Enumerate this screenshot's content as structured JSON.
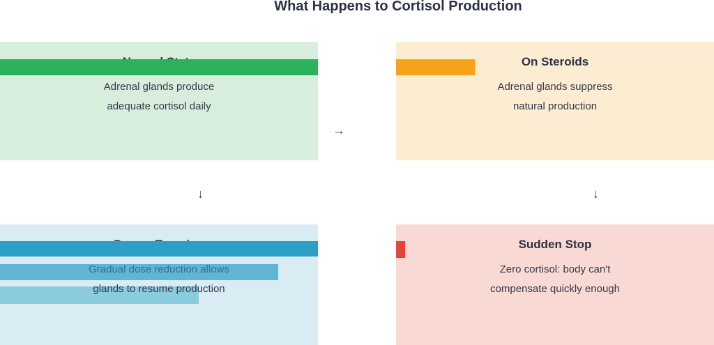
{
  "title": "What Happens to Cortisol Production",
  "arrows": {
    "right": "→",
    "down_left": "↓",
    "down_right": "↓"
  },
  "colors": {
    "title_text": "#2c3144",
    "body_text": "#333a4a",
    "tinted_text_over_bar": "#33708f",
    "normal_bg": "#d8eedd",
    "normal_bar": "#2cb15d",
    "steroids_bg": "#fcecd1",
    "steroids_bar": "#f5a318",
    "taper_bg": "#d9ebf3",
    "taper_bars": [
      "#2e9fc4",
      "#5fb5d2",
      "#8accde"
    ],
    "sudden_bg": "#f9d9d4",
    "sudden_bar": "#e3453a"
  },
  "panels": [
    {
      "id": "normal-state",
      "heading": "Normal State",
      "line1": "Adrenal glands produce",
      "line2": "adequate cortisol daily",
      "bar_pct": 100
    },
    {
      "id": "on-steroids",
      "heading": "On Steroids",
      "line1": "Adrenal glands suppress",
      "line2": "natural production",
      "bar_pct": 25
    },
    {
      "id": "proper-tapering",
      "heading": "Proper Tapering",
      "line1": "Gradual dose reduction allows",
      "line2": "glands to resume production",
      "bars_pct": [
        100,
        87.5,
        62.5
      ]
    },
    {
      "id": "sudden-stop",
      "heading": "Sudden Stop",
      "line1": "Zero cortisol: body can't",
      "line2": "compensate quickly enough",
      "bar_pct": 3
    }
  ]
}
